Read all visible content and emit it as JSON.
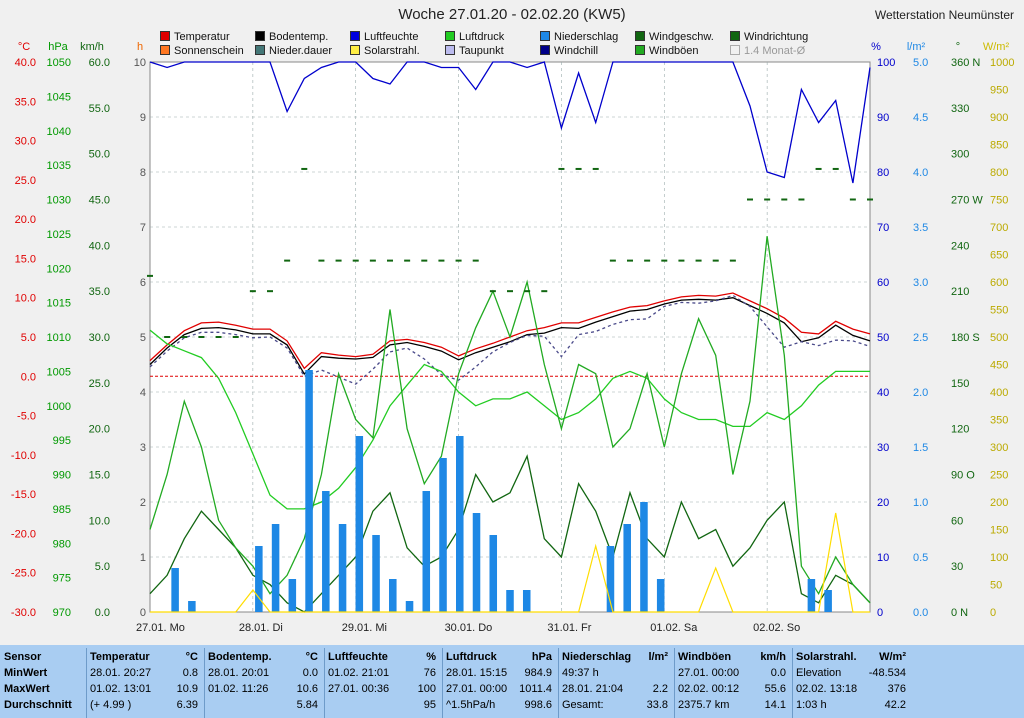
{
  "header": {
    "title": "Woche 27.01.20 - 02.02.20 (KW5)",
    "station": "Wetterstation Neumünster"
  },
  "legend": [
    {
      "label": "Temperatur",
      "color": "#e00000"
    },
    {
      "label": "Bodentemp.",
      "color": "#000000"
    },
    {
      "label": "Luftfeuchte",
      "color": "#0000e0"
    },
    {
      "label": "Luftdruck",
      "color": "#22cc22"
    },
    {
      "label": "Niederschlag",
      "color": "#1e88e5"
    },
    {
      "label": "Windgeschw.",
      "color": "#116611"
    },
    {
      "label": "Windrichtung",
      "color": "#116611"
    },
    {
      "label": "Sonnenschein",
      "color": "#ff7722"
    },
    {
      "label": "Nieder.dauer",
      "color": "#447777"
    },
    {
      "label": "Solarstrahl.",
      "color": "#ffee44"
    },
    {
      "label": "Taupunkt",
      "color": "#bbbbee"
    },
    {
      "label": "Windchill",
      "color": "#000088"
    },
    {
      "label": "Windböen",
      "color": "#22aa22"
    },
    {
      "label": "1.4 Monat-Ø",
      "color": "#f0f0f0"
    }
  ],
  "chart_data": {
    "type": "line",
    "x_labels": [
      "27.01. Mo",
      "28.01. Di",
      "29.01. Mi",
      "30.01. Do",
      "31.01. Fr",
      "01.02. Sa",
      "02.02. So"
    ],
    "axes": {
      "temp": {
        "unit": "°C",
        "range": [
          -30,
          40
        ],
        "ticks": [
          "40.0",
          "35.0",
          "30.0",
          "25.0",
          "20.0",
          "15.0",
          "10.0",
          "5.0",
          "0.0",
          "-5.0",
          "-10.0",
          "-15.0",
          "-20.0",
          "-25.0",
          "-30.0"
        ],
        "color": "#e00000"
      },
      "pressure": {
        "unit": "hPa",
        "range": [
          970,
          1050
        ],
        "ticks": [
          "1050",
          "1045",
          "1040",
          "1035",
          "1030",
          "1025",
          "1020",
          "1015",
          "1010",
          "1005",
          "1000",
          "995",
          "990",
          "985",
          "980",
          "975",
          "970"
        ],
        "color": "#009900"
      },
      "wind": {
        "unit": "km/h",
        "range": [
          0,
          60
        ],
        "ticks": [
          "60.0",
          "55.0",
          "50.0",
          "45.0",
          "40.0",
          "35.0",
          "30.0",
          "25.0",
          "20.0",
          "15.0",
          "10.0",
          "5.0",
          "0.0"
        ],
        "color": "#116611"
      },
      "hours": {
        "unit": "h",
        "range": [
          0,
          10
        ],
        "ticks": [
          "10",
          "9",
          "8",
          "7",
          "6",
          "5",
          "4",
          "3",
          "2",
          "1",
          "0"
        ],
        "color": "#ee6600"
      },
      "humidity": {
        "unit": "%",
        "range": [
          0,
          100
        ],
        "ticks": [
          "100",
          "90",
          "80",
          "70",
          "60",
          "50",
          "40",
          "30",
          "20",
          "10",
          "0"
        ],
        "color": "#0000cc"
      },
      "rain": {
        "unit": "l/m²",
        "range": [
          0,
          5
        ],
        "ticks": [
          "5.0",
          "4.5",
          "4.0",
          "3.5",
          "3.0",
          "2.5",
          "2.0",
          "1.5",
          "1.0",
          "0.5",
          "0.0"
        ],
        "color": "#1e88e5"
      },
      "direction": {
        "unit": "°",
        "range": [
          0,
          360
        ],
        "ticks": [
          "360 N",
          "330",
          "300",
          "270 W",
          "240",
          "210",
          "180 S",
          "150",
          "120",
          "90 O",
          "60",
          "30",
          "0 N"
        ],
        "color": "#116611"
      },
      "solar": {
        "unit": "W/m²",
        "range": [
          0,
          1000
        ],
        "ticks": [
          "1000",
          "950",
          "900",
          "850",
          "800",
          "750",
          "700",
          "650",
          "600",
          "550",
          "500",
          "450",
          "400",
          "350",
          "300",
          "250",
          "200",
          "150",
          "100",
          "50",
          "0"
        ],
        "color": "#ccbb00"
      }
    },
    "series": [
      {
        "name": "Temperatur",
        "axis": "temp",
        "color": "#e00000",
        "values": [
          2.0,
          4.0,
          5.8,
          6.8,
          6.9,
          6.5,
          6.0,
          6.0,
          4.5,
          1.0,
          3.0,
          2.7,
          2.5,
          2.8,
          4.5,
          4.7,
          4.3,
          3.7,
          2.6,
          3.5,
          4.2,
          5.0,
          5.8,
          6.2,
          6.8,
          6.8,
          7.5,
          8.2,
          8.8,
          9.0,
          9.6,
          10.1,
          10.3,
          10.2,
          10.6,
          9.6,
          8.6,
          7.4,
          5.6,
          5.4,
          7.0,
          6.0,
          5.4
        ]
      },
      {
        "name": "Bodentemp.",
        "axis": "temp",
        "color": "#000000",
        "values": [
          1.5,
          3.6,
          5.3,
          6.1,
          6.2,
          5.9,
          5.4,
          5.4,
          4.0,
          0.3,
          2.5,
          2.3,
          2.2,
          2.4,
          4.0,
          4.3,
          3.8,
          3.2,
          2.1,
          3.0,
          3.7,
          4.4,
          5.3,
          5.5,
          6.2,
          6.1,
          6.9,
          7.6,
          8.3,
          8.5,
          9.2,
          9.7,
          9.8,
          9.7,
          10.0,
          9.0,
          8.0,
          6.8,
          4.4,
          4.9,
          6.5,
          5.2,
          4.5
        ]
      },
      {
        "name": "Taupunkt",
        "axis": "temp",
        "color": "#4a4a8a",
        "values": [
          1.2,
          3.2,
          4.9,
          5.6,
          5.6,
          5.3,
          4.9,
          5.0,
          3.6,
          0.0,
          0.8,
          -0.1,
          -1.0,
          0.9,
          3.1,
          3.6,
          2.2,
          0.2,
          -0.5,
          1.2,
          3.1,
          4.3,
          5.2,
          5.1,
          2.5,
          5.3,
          5.7,
          6.6,
          7.2,
          7.3,
          8.9,
          9.4,
          9.3,
          9.6,
          10.3,
          8.9,
          6.3,
          3.7,
          4.4,
          3.9,
          4.6,
          4.5,
          3.8
        ]
      },
      {
        "name": "Luftfeuchte",
        "axis": "humidity",
        "color": "#0000cc",
        "values": [
          100,
          99,
          100,
          100,
          100,
          100,
          100,
          100,
          91,
          97,
          99,
          100,
          100,
          97,
          96,
          100,
          100,
          99,
          99,
          95,
          100,
          100,
          99,
          100,
          88,
          98,
          89,
          100,
          100,
          100,
          100,
          100,
          100,
          100,
          100,
          92,
          80,
          79,
          95,
          89,
          93,
          78,
          99
        ]
      },
      {
        "name": "Luftdruck",
        "axis": "pressure",
        "color": "#22cc22",
        "values": [
          1011,
          1009,
          1008,
          1007,
          1004,
          999,
          993,
          987,
          985,
          985,
          986,
          988,
          991,
          995,
          1000,
          1003,
          1006,
          1005,
          1002,
          1000,
          1001,
          1001,
          1002,
          1000,
          998,
          999,
          1001,
          1004,
          1005,
          1004,
          1001,
          999,
          998,
          998,
          997,
          997,
          999,
          998,
          1000,
          1003,
          1005,
          1005,
          1005
        ]
      },
      {
        "name": "Windgeschw.",
        "axis": "wind",
        "color": "#116611",
        "values": [
          2,
          4,
          8,
          11,
          9,
          7,
          4,
          3,
          1,
          0,
          2,
          4,
          6,
          11,
          13,
          7,
          5,
          6,
          9,
          15,
          12,
          13,
          17,
          8,
          6,
          14,
          11,
          6,
          13,
          8,
          6,
          12,
          8,
          9,
          5,
          7,
          10,
          12,
          2,
          1,
          4,
          3,
          1
        ]
      },
      {
        "name": "Windböen",
        "axis": "wind",
        "color": "#22aa22",
        "values": [
          9,
          15,
          23,
          18,
          10,
          7,
          5,
          2,
          4,
          8,
          15,
          26,
          21,
          19,
          33,
          20,
          14,
          17,
          26,
          31,
          35,
          30,
          36,
          27,
          20,
          27,
          26,
          18,
          20,
          26,
          18,
          26,
          32,
          28,
          15,
          23,
          41,
          28,
          5,
          2,
          6,
          3,
          1
        ]
      },
      {
        "name": "Windrichtung",
        "axis": "direction",
        "color": "#116611",
        "values": [
          220,
          180,
          180,
          180,
          180,
          180,
          210,
          210,
          230,
          290,
          230,
          230,
          230,
          230,
          230,
          230,
          230,
          230,
          230,
          230,
          210,
          210,
          210,
          210,
          290,
          290,
          290,
          230,
          230,
          230,
          230,
          230,
          230,
          230,
          230,
          270,
          270,
          270,
          270,
          290,
          290,
          270,
          270
        ]
      },
      {
        "name": "Niederschlag",
        "axis": "rain",
        "color": "#1e88e5",
        "values": [
          0.0,
          0.4,
          0.1,
          0.0,
          0.0,
          0.0,
          0.6,
          0.8,
          0.3,
          2.2,
          1.1,
          0.8,
          1.6,
          0.7,
          0.3,
          0.1,
          1.1,
          1.4,
          1.6,
          0.9,
          0.7,
          0.2,
          0.2,
          0.0,
          0.0,
          0.0,
          0.0,
          0.6,
          0.8,
          1.0,
          0.3,
          0.0,
          0.0,
          0.0,
          0.0,
          0.0,
          0.0,
          0.0,
          0.0,
          0.3,
          0.2,
          0.0,
          0.0
        ]
      },
      {
        "name": "Solarstrahl.",
        "axis": "solar",
        "color": "#ffdd00",
        "values": [
          0,
          0,
          0,
          0,
          0,
          0,
          40,
          0,
          0,
          0,
          0,
          0,
          0,
          0,
          0,
          0,
          0,
          0,
          0,
          0,
          0,
          0,
          0,
          0,
          0,
          0,
          120,
          0,
          0,
          0,
          0,
          0,
          0,
          80,
          0,
          0,
          0,
          0,
          0,
          0,
          180,
          0,
          0
        ]
      }
    ]
  },
  "table": {
    "row_labels": [
      "Sensor",
      "MinWert",
      "MaxWert",
      "Durchschnitt"
    ],
    "columns": [
      {
        "name": "Temperatur",
        "unit": "°C",
        "rows": [
          [
            "28.01.  20:27",
            "0.8"
          ],
          [
            "01.02.  13:01",
            "10.9"
          ],
          [
            "(+ 4.99 )",
            "6.39"
          ]
        ]
      },
      {
        "name": "Bodentemp.",
        "unit": "°C",
        "rows": [
          [
            "28.01.  20:01",
            "0.0"
          ],
          [
            "01.02.  11:26",
            "10.6"
          ],
          [
            "",
            "5.84"
          ]
        ]
      },
      {
        "name": "Luftfeuchte",
        "unit": "%",
        "rows": [
          [
            "01.02.  21:01",
            "76"
          ],
          [
            "27.01.  00:36",
            "100"
          ],
          [
            "",
            "95"
          ]
        ]
      },
      {
        "name": "Luftdruck",
        "unit": "hPa",
        "rows": [
          [
            "28.01.  15:15",
            "984.9"
          ],
          [
            "27.01.  00:00",
            "1011.4"
          ],
          [
            "^1.5hPa/h",
            "998.6"
          ]
        ]
      },
      {
        "name": "Niederschlag",
        "unit": "l/m²",
        "rows": [
          [
            "49:37 h",
            ""
          ],
          [
            "28.01.  21:04",
            "2.2"
          ],
          [
            "Gesamt:",
            "33.8"
          ]
        ]
      },
      {
        "name": "Windböen",
        "unit": "km/h",
        "rows": [
          [
            "27.01.  00:00",
            "0.0"
          ],
          [
            "02.02.  00:12",
            "55.6"
          ],
          [
            "2375.7 km",
            "14.1"
          ]
        ]
      },
      {
        "name": "Solarstrahl.",
        "unit": "W/m²",
        "rows": [
          [
            "Elevation",
            "-48.534"
          ],
          [
            "02.02.  13:18",
            "376"
          ],
          [
            "1:03 h",
            "42.2"
          ]
        ]
      }
    ]
  }
}
